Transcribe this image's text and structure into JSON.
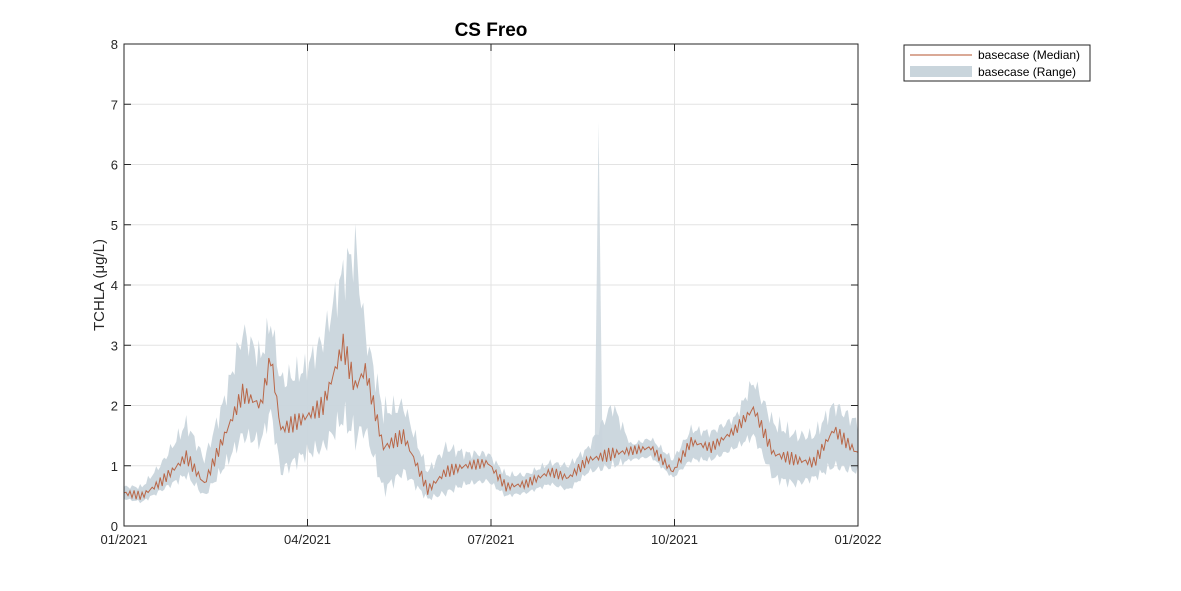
{
  "chart_data": {
    "type": "area",
    "title": "CS Freo",
    "xlabel": "",
    "ylabel": "TCHLA (μg/L)",
    "xlim": [
      "2021-01-01",
      "2022-01-01"
    ],
    "ylim": [
      0,
      8
    ],
    "x_ticks": [
      "01/2021",
      "04/2021",
      "07/2021",
      "10/2021",
      "01/2022"
    ],
    "y_ticks": [
      "0",
      "1",
      "2",
      "3",
      "4",
      "5",
      "6",
      "7",
      "8"
    ],
    "grid": true,
    "legend_position": "outside-top-right",
    "colors": {
      "median": "#b5532e",
      "range": "#c9d5dc"
    },
    "series": [
      {
        "name": "basecase (Median)",
        "kind": "line",
        "x": [
          "2021-01-01",
          "2021-01-10",
          "2021-01-20",
          "2021-02-01",
          "2021-02-10",
          "2021-02-20",
          "2021-03-01",
          "2021-03-10",
          "2021-03-15",
          "2021-03-20",
          "2021-04-01",
          "2021-04-10",
          "2021-04-20",
          "2021-04-26",
          "2021-05-01",
          "2021-05-10",
          "2021-05-20",
          "2021-06-01",
          "2021-06-10",
          "2021-06-20",
          "2021-07-01",
          "2021-07-10",
          "2021-07-20",
          "2021-08-01",
          "2021-08-10",
          "2021-08-20",
          "2021-09-01",
          "2021-09-10",
          "2021-09-20",
          "2021-10-01",
          "2021-10-10",
          "2021-10-20",
          "2021-11-01",
          "2021-11-10",
          "2021-11-20",
          "2021-12-01",
          "2021-12-10",
          "2021-12-20",
          "2022-01-01"
        ],
        "y": [
          0.55,
          0.5,
          0.75,
          1.15,
          0.7,
          1.5,
          2.2,
          2.0,
          2.8,
          1.6,
          1.8,
          2.0,
          3.0,
          2.3,
          2.6,
          1.3,
          1.5,
          0.6,
          0.9,
          1.0,
          1.05,
          0.65,
          0.7,
          0.9,
          0.8,
          1.1,
          1.2,
          1.25,
          1.3,
          0.9,
          1.4,
          1.3,
          1.6,
          1.95,
          1.2,
          1.1,
          1.05,
          1.6,
          1.2
        ]
      },
      {
        "name": "basecase (Range)",
        "kind": "band",
        "x": [
          "2021-01-01",
          "2021-01-10",
          "2021-01-20",
          "2021-02-01",
          "2021-02-10",
          "2021-02-20",
          "2021-03-01",
          "2021-03-10",
          "2021-03-15",
          "2021-03-20",
          "2021-04-01",
          "2021-04-10",
          "2021-04-20",
          "2021-04-26",
          "2021-05-01",
          "2021-05-10",
          "2021-05-20",
          "2021-06-01",
          "2021-06-10",
          "2021-06-20",
          "2021-07-01",
          "2021-07-10",
          "2021-07-20",
          "2021-08-01",
          "2021-08-10",
          "2021-08-20",
          "2021-09-01",
          "2021-09-10",
          "2021-09-20",
          "2021-10-01",
          "2021-10-10",
          "2021-10-20",
          "2021-11-01",
          "2021-11-10",
          "2021-11-20",
          "2021-12-01",
          "2021-12-10",
          "2021-12-20",
          "2022-01-01"
        ],
        "low": [
          0.45,
          0.4,
          0.6,
          0.85,
          0.5,
          1.0,
          1.5,
          1.4,
          1.9,
          0.9,
          1.2,
          1.3,
          1.8,
          1.5,
          1.6,
          0.6,
          0.9,
          0.45,
          0.55,
          0.7,
          0.75,
          0.5,
          0.55,
          0.7,
          0.6,
          0.9,
          1.0,
          1.1,
          1.15,
          0.8,
          1.1,
          1.1,
          1.3,
          1.5,
          0.8,
          0.7,
          0.8,
          1.0,
          0.9
        ],
        "high": [
          0.65,
          0.65,
          1.05,
          1.7,
          1.1,
          2.1,
          3.2,
          2.8,
          3.4,
          2.4,
          2.6,
          3.1,
          4.2,
          4.6,
          3.2,
          1.9,
          2.0,
          0.9,
          1.3,
          1.2,
          1.2,
          0.85,
          0.85,
          1.05,
          1.0,
          1.3,
          2.0,
          1.35,
          1.45,
          1.1,
          1.6,
          1.55,
          1.8,
          2.4,
          1.7,
          1.5,
          1.5,
          2.0,
          1.7
        ]
      }
    ],
    "annotations": [
      {
        "x": "2021-08-25",
        "low": 1.1,
        "high": 6.7,
        "note": "spike"
      }
    ]
  }
}
